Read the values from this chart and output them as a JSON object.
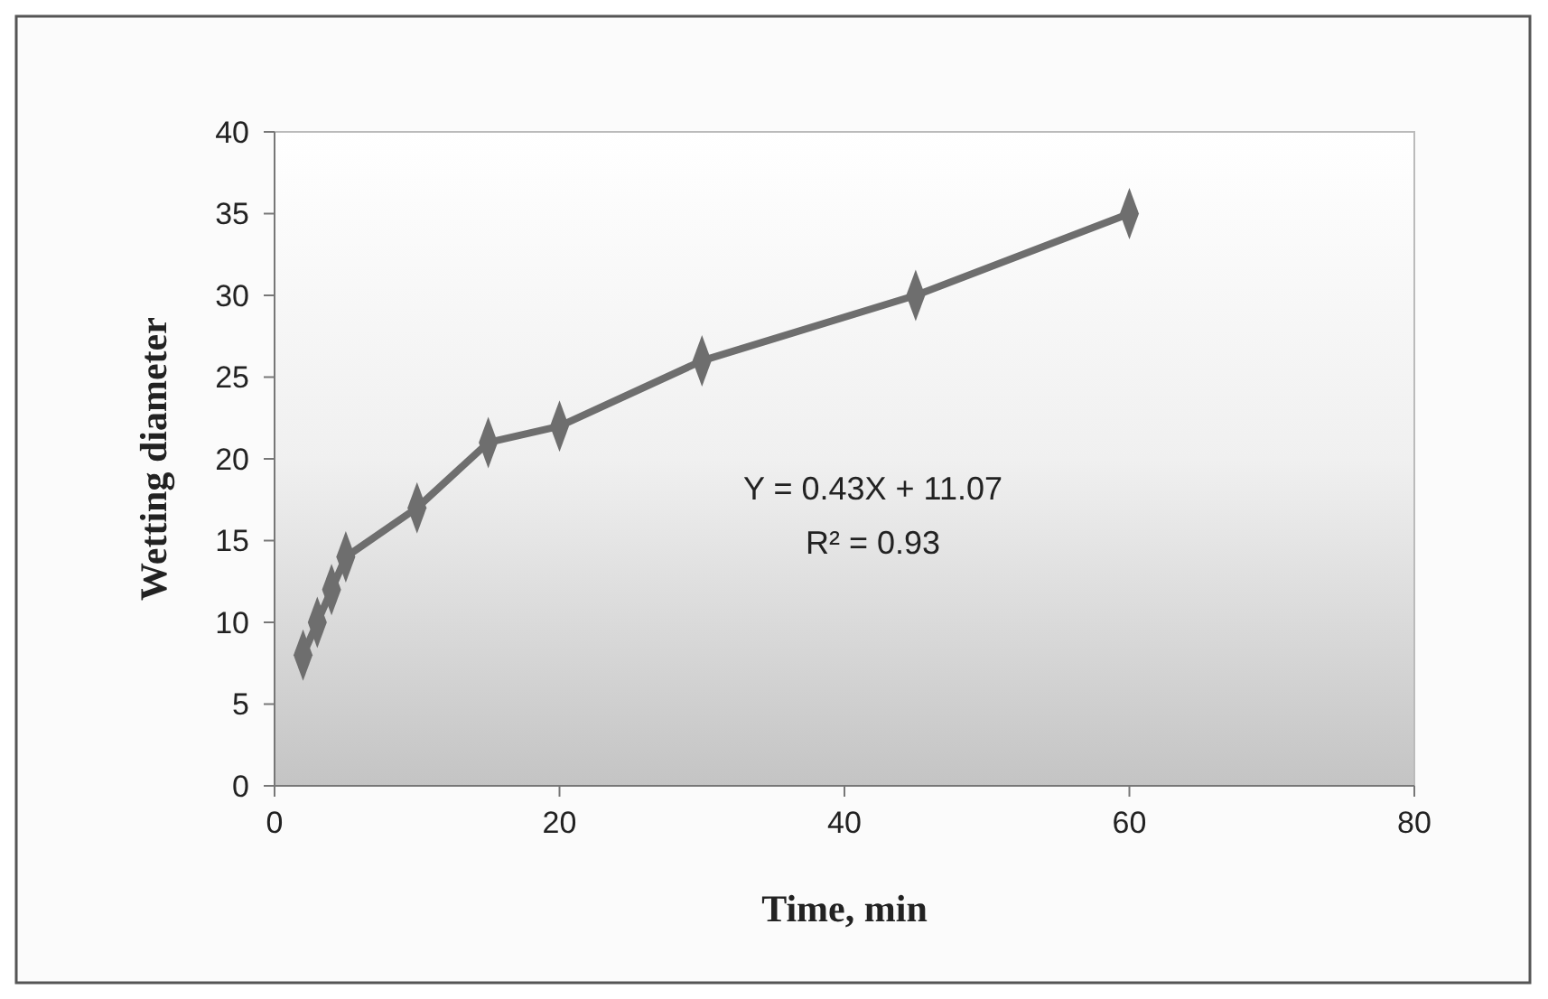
{
  "chart_data": {
    "type": "line",
    "xlabel": "Time, min",
    "ylabel": "Wetting diameter",
    "x": [
      2,
      3,
      4,
      5,
      10,
      15,
      20,
      30,
      45,
      60
    ],
    "series": [
      {
        "color": "#6e6e6e",
        "values": [
          8,
          10,
          12,
          14,
          17,
          21,
          22,
          26,
          30,
          35
        ]
      }
    ],
    "xlim": [
      0,
      80
    ],
    "xticks": [
      0,
      20,
      40,
      60,
      80
    ],
    "ylim": [
      0,
      40
    ],
    "yticks": [
      0,
      5,
      10,
      15,
      20,
      25,
      30,
      35,
      40
    ],
    "marker": "diamond",
    "line_style": "solid",
    "annotations": [
      "Y = 0.43X + 11.07",
      "R² = 0.93"
    ]
  }
}
